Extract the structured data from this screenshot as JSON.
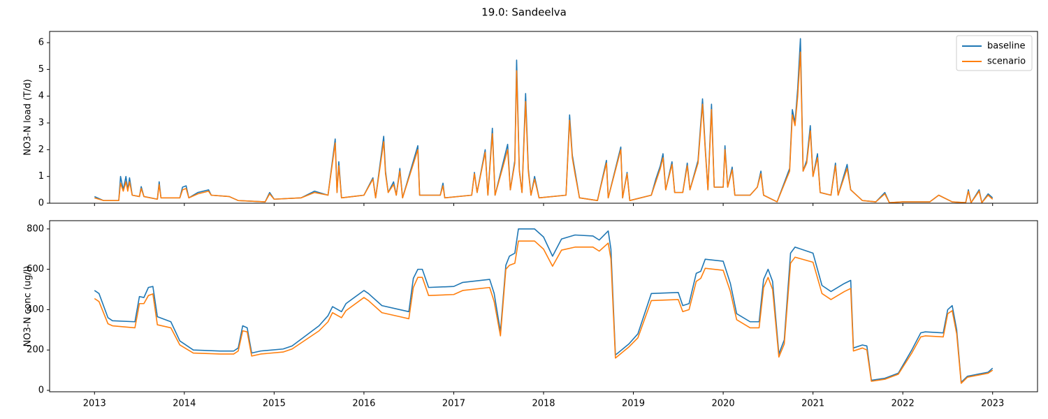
{
  "title": "19.0: Sandeelva",
  "chart_data": [
    {
      "type": "line",
      "ylabel": "NO3-N load (T/d)",
      "legend": "upper right",
      "xlim": [
        2012.5,
        2023.5
      ],
      "xticks": [
        2013,
        2014,
        2015,
        2016,
        2017,
        2018,
        2019,
        2020,
        2021,
        2022,
        2023
      ],
      "ylim": [
        0,
        6.42
      ],
      "yticks": [
        0,
        1,
        2,
        3,
        4,
        5,
        6
      ],
      "x": [
        2013.0,
        2013.1,
        2013.27,
        2013.29,
        2013.32,
        2013.35,
        2013.37,
        2013.39,
        2013.42,
        2013.5,
        2013.52,
        2013.55,
        2013.7,
        2013.72,
        2013.74,
        2013.95,
        2013.98,
        2014.02,
        2014.05,
        2014.15,
        2014.27,
        2014.3,
        2014.5,
        2014.6,
        2014.9,
        2014.95,
        2015.0,
        2015.3,
        2015.45,
        2015.6,
        2015.68,
        2015.7,
        2015.72,
        2015.75,
        2016.0,
        2016.1,
        2016.13,
        2016.22,
        2016.24,
        2016.27,
        2016.33,
        2016.36,
        2016.4,
        2016.43,
        2016.6,
        2016.62,
        2016.85,
        2016.88,
        2016.9,
        2017.2,
        2017.23,
        2017.26,
        2017.35,
        2017.38,
        2017.43,
        2017.46,
        2017.6,
        2017.63,
        2017.68,
        2017.7,
        2017.73,
        2017.76,
        2017.8,
        2017.83,
        2017.86,
        2017.9,
        2017.95,
        2018.25,
        2018.29,
        2018.32,
        2018.35,
        2018.4,
        2018.6,
        2018.7,
        2018.72,
        2018.86,
        2018.88,
        2018.93,
        2018.96,
        2019.2,
        2019.25,
        2019.3,
        2019.33,
        2019.36,
        2019.43,
        2019.46,
        2019.55,
        2019.6,
        2019.63,
        2019.72,
        2019.77,
        2019.8,
        2019.83,
        2019.87,
        2019.9,
        2020.0,
        2020.02,
        2020.05,
        2020.1,
        2020.13,
        2020.3,
        2020.38,
        2020.42,
        2020.45,
        2020.6,
        2020.74,
        2020.77,
        2020.8,
        2020.83,
        2020.86,
        2020.89,
        2020.93,
        2020.97,
        2021.0,
        2021.05,
        2021.08,
        2021.2,
        2021.25,
        2021.28,
        2021.38,
        2021.42,
        2021.55,
        2021.7,
        2021.8,
        2021.85,
        2022.0,
        2022.3,
        2022.4,
        2022.55,
        2022.7,
        2022.73,
        2022.76,
        2022.85,
        2022.88,
        2022.95,
        2023.0
      ],
      "series": [
        {
          "name": "baseline",
          "color": "#1f77b4",
          "values": [
            0.25,
            0.1,
            0.1,
            1.0,
            0.5,
            1.0,
            0.5,
            0.95,
            0.3,
            0.25,
            0.62,
            0.25,
            0.15,
            0.8,
            0.2,
            0.2,
            0.6,
            0.65,
            0.2,
            0.4,
            0.5,
            0.3,
            0.25,
            0.1,
            0.05,
            0.4,
            0.15,
            0.2,
            0.45,
            0.3,
            2.4,
            0.4,
            1.55,
            0.2,
            0.3,
            0.95,
            0.2,
            2.5,
            1.2,
            0.4,
            0.8,
            0.3,
            1.3,
            0.2,
            2.15,
            0.3,
            0.3,
            0.75,
            0.2,
            0.3,
            1.15,
            0.4,
            2.0,
            0.3,
            2.8,
            0.3,
            2.2,
            0.5,
            1.6,
            5.35,
            1.25,
            0.4,
            4.1,
            1.3,
            0.3,
            1.0,
            0.2,
            0.3,
            3.3,
            1.8,
            1.2,
            0.2,
            0.1,
            1.6,
            0.2,
            2.1,
            0.2,
            1.15,
            0.1,
            0.3,
            0.9,
            1.4,
            1.85,
            0.5,
            1.55,
            0.4,
            0.4,
            1.5,
            0.5,
            1.6,
            3.9,
            2.1,
            0.5,
            3.7,
            0.6,
            0.6,
            2.15,
            0.6,
            1.35,
            0.3,
            0.3,
            0.6,
            1.2,
            0.3,
            0.05,
            1.3,
            3.5,
            3.0,
            4.3,
            6.15,
            1.2,
            1.6,
            2.9,
            1.0,
            1.85,
            0.4,
            0.3,
            1.5,
            0.3,
            1.45,
            0.5,
            0.1,
            0.05,
            0.4,
            0.02,
            0.05,
            0.05,
            0.3,
            0.05,
            0.02,
            0.5,
            0.02,
            0.5,
            0.02,
            0.35,
            0.2
          ]
        },
        {
          "name": "scenario",
          "color": "#ff7f0e",
          "values": [
            0.2,
            0.1,
            0.1,
            0.75,
            0.45,
            0.8,
            0.45,
            0.8,
            0.3,
            0.25,
            0.55,
            0.25,
            0.15,
            0.7,
            0.2,
            0.2,
            0.5,
            0.55,
            0.2,
            0.35,
            0.45,
            0.3,
            0.25,
            0.1,
            0.05,
            0.35,
            0.15,
            0.2,
            0.4,
            0.3,
            2.25,
            0.4,
            1.4,
            0.2,
            0.3,
            0.9,
            0.2,
            2.3,
            1.1,
            0.4,
            0.7,
            0.3,
            1.2,
            0.2,
            2.0,
            0.3,
            0.3,
            0.65,
            0.2,
            0.3,
            1.1,
            0.4,
            1.9,
            0.3,
            2.6,
            0.3,
            2.0,
            0.5,
            1.5,
            4.95,
            1.2,
            0.4,
            3.8,
            1.2,
            0.3,
            0.9,
            0.2,
            0.3,
            3.1,
            1.7,
            1.1,
            0.2,
            0.1,
            1.5,
            0.2,
            2.0,
            0.2,
            1.1,
            0.1,
            0.3,
            0.8,
            1.3,
            1.7,
            0.5,
            1.45,
            0.4,
            0.4,
            1.4,
            0.5,
            1.5,
            3.7,
            2.0,
            0.5,
            3.5,
            0.6,
            0.6,
            2.0,
            0.6,
            1.25,
            0.3,
            0.3,
            0.6,
            1.1,
            0.3,
            0.05,
            1.2,
            3.3,
            2.9,
            4.0,
            5.65,
            1.2,
            1.5,
            2.7,
            1.0,
            1.7,
            0.4,
            0.3,
            1.4,
            0.3,
            1.3,
            0.5,
            0.1,
            0.05,
            0.35,
            0.02,
            0.05,
            0.05,
            0.3,
            0.05,
            0.02,
            0.45,
            0.02,
            0.45,
            0.02,
            0.3,
            0.15
          ]
        }
      ]
    },
    {
      "type": "line",
      "ylabel": "NO3-N conc (ug/l)",
      "xlim": [
        2012.5,
        2023.5
      ],
      "xticks": [
        2013,
        2014,
        2015,
        2016,
        2017,
        2018,
        2019,
        2020,
        2021,
        2022,
        2023
      ],
      "ylim": [
        -7,
        841
      ],
      "yticks": [
        0,
        200,
        400,
        600,
        800
      ],
      "x": [
        2013.0,
        2013.05,
        2013.15,
        2013.2,
        2013.45,
        2013.5,
        2013.55,
        2013.6,
        2013.65,
        2013.7,
        2013.85,
        2013.95,
        2014.1,
        2014.4,
        2014.55,
        2014.6,
        2014.65,
        2014.7,
        2014.75,
        2014.85,
        2015.1,
        2015.2,
        2015.5,
        2015.6,
        2015.65,
        2015.75,
        2015.8,
        2016.0,
        2016.05,
        2016.2,
        2016.4,
        2016.5,
        2016.55,
        2016.6,
        2016.65,
        2016.72,
        2017.0,
        2017.1,
        2017.4,
        2017.45,
        2017.52,
        2017.58,
        2017.62,
        2017.68,
        2017.72,
        2017.9,
        2018.0,
        2018.1,
        2018.2,
        2018.35,
        2018.55,
        2018.62,
        2018.72,
        2018.75,
        2018.8,
        2018.95,
        2019.05,
        2019.2,
        2019.5,
        2019.55,
        2019.62,
        2019.7,
        2019.75,
        2019.8,
        2020.0,
        2020.08,
        2020.15,
        2020.3,
        2020.4,
        2020.45,
        2020.5,
        2020.55,
        2020.62,
        2020.68,
        2020.75,
        2020.8,
        2021.0,
        2021.1,
        2021.2,
        2021.35,
        2021.42,
        2021.45,
        2021.55,
        2021.6,
        2021.65,
        2021.8,
        2021.95,
        2022.1,
        2022.2,
        2022.25,
        2022.45,
        2022.5,
        2022.55,
        2022.6,
        2022.65,
        2022.72,
        2022.95,
        2023.0
      ],
      "series": [
        {
          "color": "#1f77b4",
          "values": [
            495,
            480,
            360,
            345,
            340,
            465,
            460,
            510,
            515,
            365,
            340,
            245,
            200,
            195,
            195,
            210,
            320,
            310,
            185,
            195,
            205,
            220,
            320,
            370,
            415,
            390,
            430,
            495,
            480,
            420,
            400,
            390,
            555,
            600,
            600,
            510,
            515,
            535,
            550,
            480,
            290,
            620,
            665,
            680,
            800,
            800,
            760,
            665,
            750,
            770,
            765,
            745,
            790,
            700,
            175,
            230,
            280,
            480,
            485,
            420,
            430,
            580,
            590,
            650,
            640,
            530,
            380,
            340,
            340,
            550,
            600,
            540,
            180,
            250,
            680,
            710,
            680,
            520,
            490,
            530,
            545,
            210,
            225,
            220,
            50,
            60,
            85,
            200,
            285,
            290,
            285,
            400,
            420,
            300,
            40,
            70,
            90,
            110
          ]
        },
        {
          "color": "#ff7f0e",
          "values": [
            455,
            440,
            330,
            320,
            310,
            430,
            430,
            470,
            478,
            325,
            310,
            225,
            185,
            180,
            180,
            195,
            295,
            290,
            170,
            180,
            190,
            205,
            295,
            340,
            385,
            360,
            395,
            460,
            445,
            385,
            365,
            355,
            510,
            560,
            560,
            470,
            475,
            495,
            510,
            440,
            270,
            600,
            620,
            630,
            740,
            740,
            700,
            615,
            695,
            710,
            710,
            690,
            730,
            650,
            160,
            215,
            260,
            445,
            450,
            390,
            400,
            540,
            555,
            605,
            595,
            490,
            350,
            310,
            310,
            510,
            560,
            500,
            165,
            230,
            630,
            660,
            635,
            480,
            450,
            490,
            505,
            195,
            210,
            200,
            45,
            55,
            80,
            185,
            265,
            270,
            265,
            380,
            395,
            280,
            35,
            65,
            85,
            100
          ]
        }
      ]
    }
  ]
}
